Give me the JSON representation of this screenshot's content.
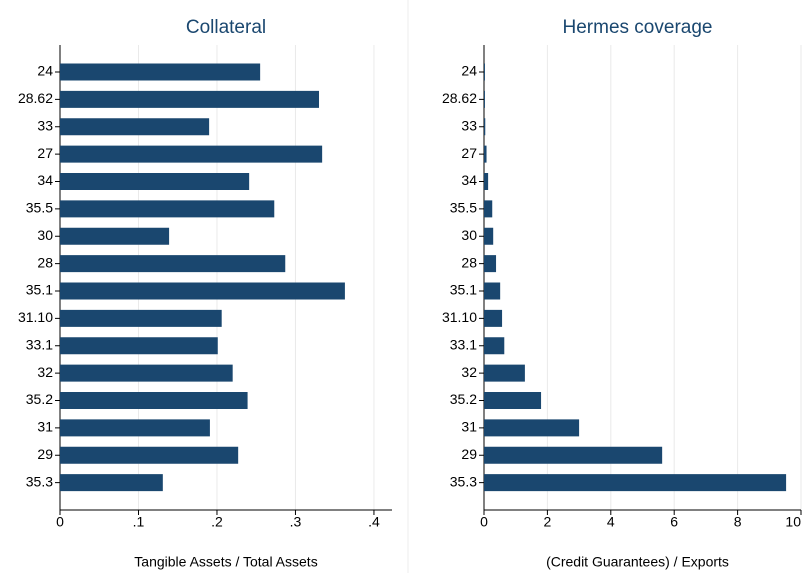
{
  "chart_data": [
    {
      "type": "barh",
      "title": "Collateral",
      "x_label": "Tangible Assets / Total Assets",
      "categories": [
        "24",
        "28.62",
        "33",
        "27",
        "34",
        "35.5",
        "30",
        "28",
        "35.1",
        "31.10",
        "33.1",
        "32",
        "35.2",
        "31",
        "29",
        "35.3"
      ],
      "values": [
        0.255,
        0.33,
        0.19,
        0.334,
        0.241,
        0.273,
        0.139,
        0.287,
        0.363,
        0.206,
        0.201,
        0.22,
        0.239,
        0.191,
        0.227,
        0.131
      ],
      "color": "#1a476f",
      "xlim": [
        0,
        0.423
      ],
      "xticks": [
        0,
        {
          "value": 0.1,
          "label": ".1"
        },
        {
          "value": 0.2,
          "label": ".2"
        },
        {
          "value": 0.3,
          "label": ".3"
        },
        {
          "value": 0.4,
          "label": ".4"
        }
      ],
      "grid": true
    },
    {
      "type": "barh",
      "title": "Hermes coverage",
      "x_label": "(Credit Guarantees) / Exports",
      "categories": [
        "24",
        "28.62",
        "33",
        "27",
        "34",
        "35.5",
        "30",
        "28",
        "35.1",
        "31.10",
        "33.1",
        "32",
        "35.2",
        "31",
        "29",
        "35.3"
      ],
      "values": [
        0.03,
        0.03,
        0.04,
        0.08,
        0.13,
        0.26,
        0.29,
        0.38,
        0.51,
        0.57,
        0.64,
        1.29,
        1.8,
        3.0,
        5.62,
        9.53
      ],
      "color": "#1a476f",
      "xlim": [
        0,
        10
      ],
      "xticks": [
        0,
        2,
        4,
        6,
        8,
        10
      ],
      "grid": true
    }
  ]
}
